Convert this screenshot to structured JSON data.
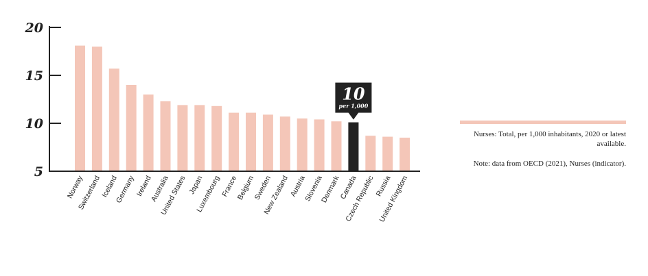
{
  "chart_data": {
    "type": "bar",
    "categories": [
      "Norway",
      "Switzerland",
      "Iceland",
      "Germany",
      "Ireland",
      "Australia",
      "United States",
      "Japan",
      "Luxembourg",
      "France",
      "Belgium",
      "Sweden",
      "New Zealand",
      "Austria",
      "Slovenia",
      "Denmark",
      "Canada",
      "Czech Republic",
      "Russia",
      "United Kingdom"
    ],
    "values": [
      18.1,
      18.0,
      15.7,
      14.0,
      13.0,
      12.3,
      11.9,
      11.9,
      11.8,
      11.1,
      11.1,
      10.9,
      10.7,
      10.5,
      10.4,
      10.2,
      10.1,
      8.7,
      8.6,
      8.5
    ],
    "ylim": [
      5,
      20
    ],
    "yticks": [
      "5",
      "10",
      "15",
      "20"
    ],
    "highlight": "Canada",
    "colors": {
      "bar": "#f4c6b8",
      "highlight": "#222222",
      "axis": "#222222"
    },
    "grid": false
  },
  "callout": {
    "value": "10",
    "unit": "per 1,000"
  },
  "notes": {
    "description": "Nurses: Total, per 1,000 inhabitants, 2020 or latest available.",
    "source": "Note: data from OECD (2021), Nurses (indicator)."
  }
}
